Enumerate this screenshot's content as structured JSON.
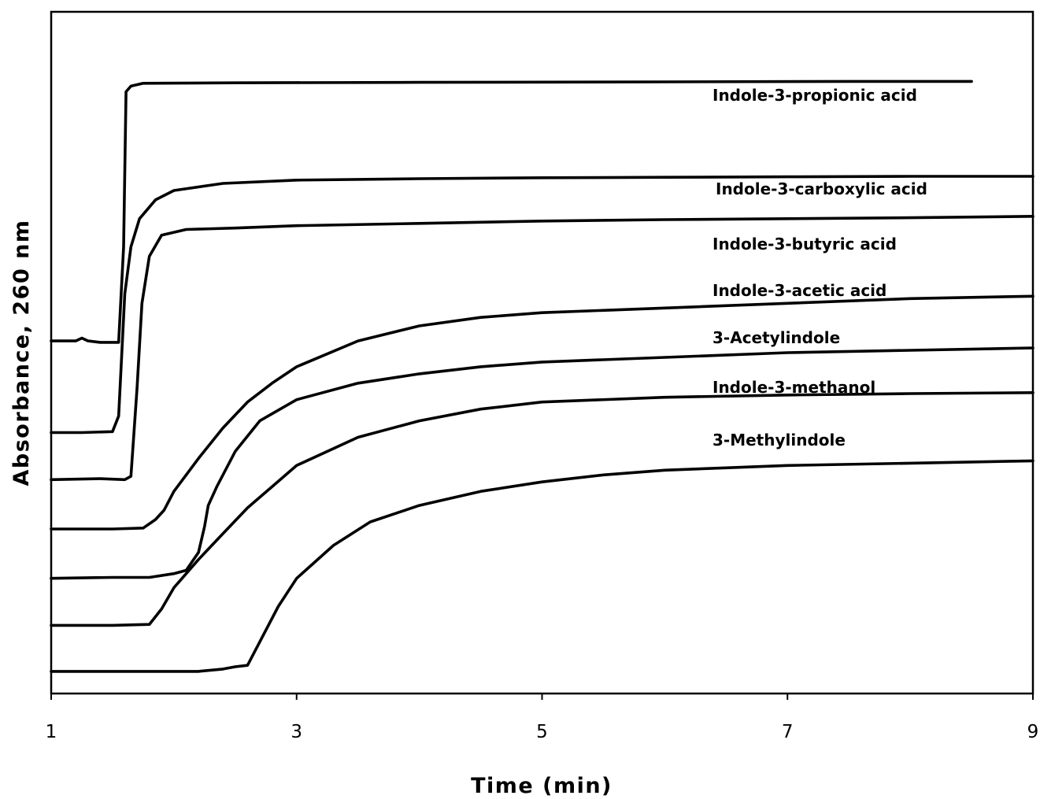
{
  "chart_data": {
    "type": "line",
    "title": "",
    "xlabel": "Time (min)",
    "ylabel": "Absorbance, 260 nm",
    "xlim": [
      1,
      9
    ],
    "ylim": [
      0,
      14.5
    ],
    "x_ticks": [
      "1",
      "3",
      "5",
      "7",
      "9"
    ],
    "x_tick_values": [
      1,
      3,
      5,
      7,
      9
    ],
    "y_ticks_shown": false,
    "grid": false,
    "legend": "none",
    "line_color": "#000000",
    "series": [
      {
        "name": "Indole-3-propionic acid",
        "points": [
          [
            1.0,
            7.5
          ],
          [
            1.2,
            7.5
          ],
          [
            1.25,
            7.56
          ],
          [
            1.3,
            7.5
          ],
          [
            1.4,
            7.47
          ],
          [
            1.55,
            7.47
          ],
          [
            1.59,
            9.5
          ],
          [
            1.61,
            12.8
          ],
          [
            1.65,
            12.92
          ],
          [
            1.75,
            12.98
          ],
          [
            2.5,
            12.99
          ],
          [
            4.0,
            13.0
          ],
          [
            6.0,
            13.01
          ],
          [
            7.5,
            13.02
          ],
          [
            8.5,
            13.02
          ]
        ]
      },
      {
        "name": "Indole-3-carboxylic acid",
        "points": [
          [
            1.0,
            5.55
          ],
          [
            1.25,
            5.55
          ],
          [
            1.5,
            5.57
          ],
          [
            1.55,
            5.9
          ],
          [
            1.6,
            8.5
          ],
          [
            1.65,
            9.5
          ],
          [
            1.72,
            10.1
          ],
          [
            1.85,
            10.5
          ],
          [
            2.0,
            10.7
          ],
          [
            2.4,
            10.85
          ],
          [
            3.0,
            10.92
          ],
          [
            4.0,
            10.95
          ],
          [
            5.0,
            10.97
          ],
          [
            6.0,
            10.98
          ],
          [
            7.0,
            10.99
          ],
          [
            8.0,
            11.0
          ],
          [
            9.0,
            11.0
          ]
        ]
      },
      {
        "name": "Indole-3-butyric acid",
        "points": [
          [
            1.0,
            4.55
          ],
          [
            1.4,
            4.57
          ],
          [
            1.6,
            4.55
          ],
          [
            1.65,
            4.62
          ],
          [
            1.7,
            6.5
          ],
          [
            1.74,
            8.3
          ],
          [
            1.8,
            9.3
          ],
          [
            1.9,
            9.75
          ],
          [
            2.1,
            9.87
          ],
          [
            2.5,
            9.9
          ],
          [
            3.0,
            9.95
          ],
          [
            4.0,
            10.0
          ],
          [
            5.0,
            10.05
          ],
          [
            6.0,
            10.08
          ],
          [
            7.0,
            10.1
          ],
          [
            8.0,
            10.12
          ],
          [
            9.0,
            10.15
          ]
        ]
      },
      {
        "name": "Indole-3-acetic acid",
        "points": [
          [
            1.0,
            3.5
          ],
          [
            1.5,
            3.5
          ],
          [
            1.75,
            3.52
          ],
          [
            1.85,
            3.7
          ],
          [
            1.92,
            3.9
          ],
          [
            2.0,
            4.3
          ],
          [
            2.2,
            5.0
          ],
          [
            2.4,
            5.65
          ],
          [
            2.6,
            6.2
          ],
          [
            2.8,
            6.6
          ],
          [
            3.0,
            6.95
          ],
          [
            3.5,
            7.5
          ],
          [
            4.0,
            7.82
          ],
          [
            4.5,
            8.0
          ],
          [
            5.0,
            8.1
          ],
          [
            6.0,
            8.2
          ],
          [
            7.0,
            8.3
          ],
          [
            8.0,
            8.4
          ],
          [
            9.0,
            8.45
          ]
        ]
      },
      {
        "name": "3-Acetylindole",
        "points": [
          [
            1.0,
            2.45
          ],
          [
            1.5,
            2.47
          ],
          [
            1.8,
            2.47
          ],
          [
            2.0,
            2.55
          ],
          [
            2.1,
            2.62
          ],
          [
            2.2,
            3.0
          ],
          [
            2.25,
            3.55
          ],
          [
            2.28,
            4.0
          ],
          [
            2.35,
            4.4
          ],
          [
            2.5,
            5.15
          ],
          [
            2.7,
            5.8
          ],
          [
            3.0,
            6.25
          ],
          [
            3.5,
            6.6
          ],
          [
            4.0,
            6.8
          ],
          [
            4.5,
            6.95
          ],
          [
            5.0,
            7.05
          ],
          [
            6.0,
            7.15
          ],
          [
            7.0,
            7.25
          ],
          [
            8.0,
            7.3
          ],
          [
            9.0,
            7.35
          ]
        ]
      },
      {
        "name": "Indole-3-methanol",
        "points": [
          [
            1.0,
            1.45
          ],
          [
            1.5,
            1.45
          ],
          [
            1.8,
            1.47
          ],
          [
            1.9,
            1.8
          ],
          [
            2.0,
            2.25
          ],
          [
            2.2,
            2.85
          ],
          [
            2.4,
            3.4
          ],
          [
            2.6,
            3.95
          ],
          [
            2.8,
            4.4
          ],
          [
            3.0,
            4.85
          ],
          [
            3.5,
            5.45
          ],
          [
            4.0,
            5.8
          ],
          [
            4.5,
            6.05
          ],
          [
            5.0,
            6.2
          ],
          [
            6.0,
            6.3
          ],
          [
            7.0,
            6.35
          ],
          [
            8.0,
            6.38
          ],
          [
            9.0,
            6.4
          ]
        ]
      },
      {
        "name": "3-Methylindole",
        "points": [
          [
            1.0,
            0.47
          ],
          [
            1.8,
            0.47
          ],
          [
            2.2,
            0.47
          ],
          [
            2.4,
            0.52
          ],
          [
            2.5,
            0.57
          ],
          [
            2.6,
            0.6
          ],
          [
            2.7,
            1.1
          ],
          [
            2.85,
            1.85
          ],
          [
            3.0,
            2.45
          ],
          [
            3.3,
            3.15
          ],
          [
            3.6,
            3.65
          ],
          [
            4.0,
            4.0
          ],
          [
            4.5,
            4.3
          ],
          [
            5.0,
            4.5
          ],
          [
            5.5,
            4.65
          ],
          [
            6.0,
            4.75
          ],
          [
            6.5,
            4.8
          ],
          [
            7.0,
            4.85
          ],
          [
            8.0,
            4.9
          ],
          [
            9.0,
            4.95
          ]
        ]
      }
    ]
  }
}
